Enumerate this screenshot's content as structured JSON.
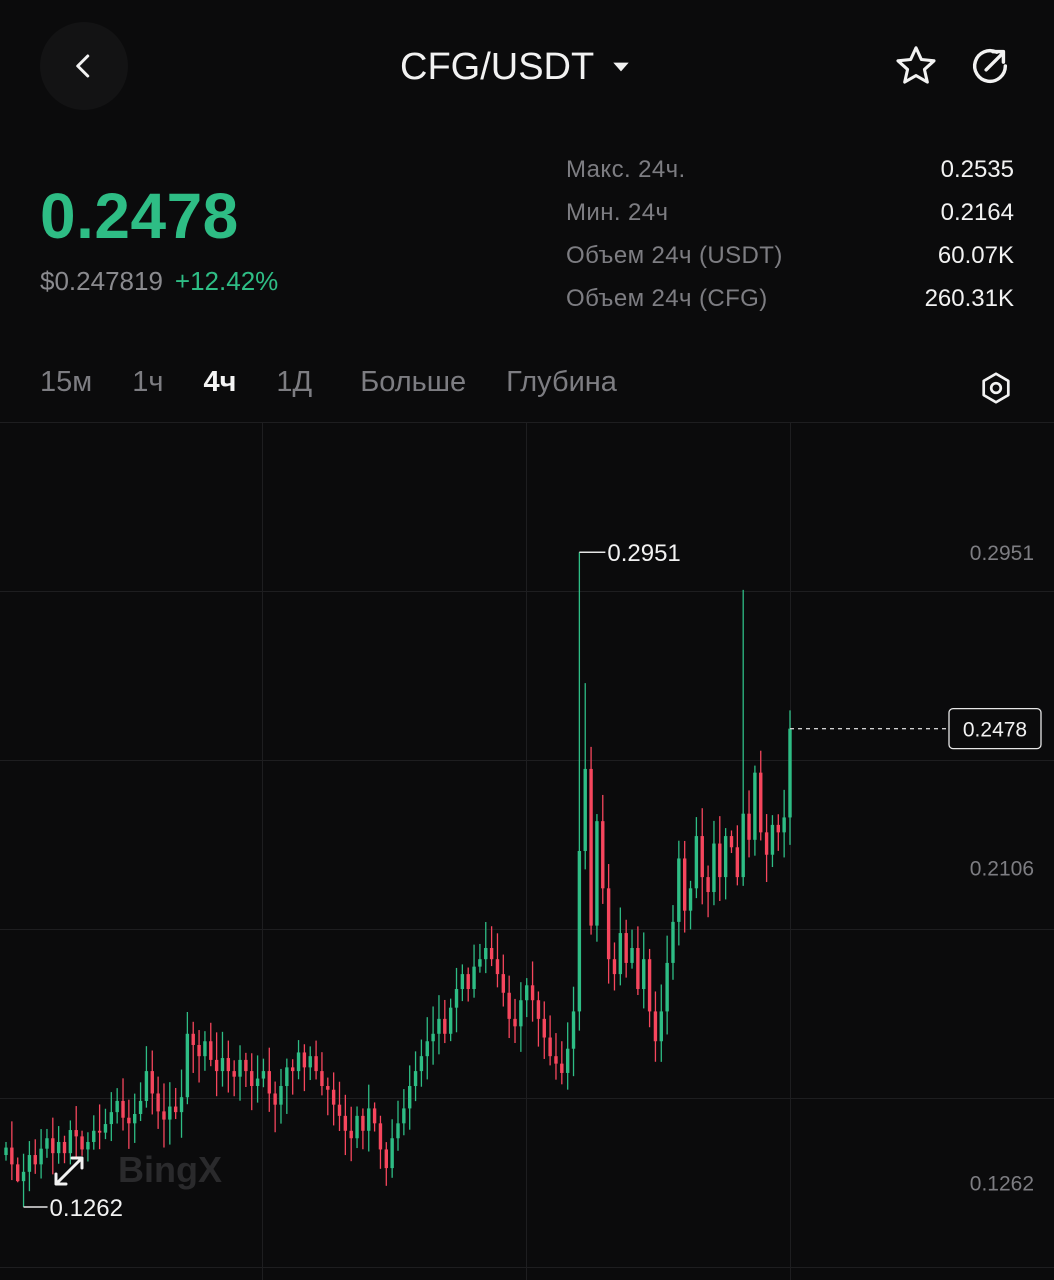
{
  "header": {
    "pair": "CFG/USDT",
    "icons": {
      "back": "chevron-left-icon",
      "dropdown": "caret-down-icon",
      "favorite": "star-icon",
      "share": "share-icon"
    }
  },
  "ticker": {
    "last_price": "0.2478",
    "usd_price": "$0.247819",
    "change": "+12.42%"
  },
  "stats": [
    {
      "label": "Макс. 24ч.",
      "value": "0.2535"
    },
    {
      "label": "Мин. 24ч",
      "value": "0.2164"
    },
    {
      "label": "Объем 24ч (USDT)",
      "value": "60.07K"
    },
    {
      "label": "Объем 24ч (CFG)",
      "value": "260.31K"
    }
  ],
  "tabs": [
    {
      "label": "15м",
      "active": false
    },
    {
      "label": "1ч",
      "active": false
    },
    {
      "label": "4ч",
      "active": true
    },
    {
      "label": "1Д",
      "active": false
    },
    {
      "label": "Больше",
      "active": false
    },
    {
      "label": "Глубина",
      "active": false
    }
  ],
  "colors": {
    "up": "#2ebd85",
    "down": "#f6465d",
    "background": "#0b0b0c",
    "grid": "#1e1e20",
    "muted": "#7d7d82"
  },
  "chart_data": {
    "type": "candlestick",
    "yticks": [
      "0.2951",
      "0.2106",
      "0.1262"
    ],
    "ylim": [
      0.1,
      0.33
    ],
    "high_label": "0.2951",
    "low_label": "0.1262",
    "current_label": "0.2478",
    "watermark": "BingX",
    "closes": [
      0.1355,
      0.131,
      0.1265,
      0.129,
      0.1335,
      0.131,
      0.1352,
      0.138,
      0.134,
      0.137,
      0.134,
      0.1402,
      0.1385,
      0.135,
      0.137,
      0.14,
      0.1395,
      0.1418,
      0.145,
      0.148,
      0.1435,
      0.142,
      0.1445,
      0.148,
      0.156,
      0.15,
      0.1452,
      0.143,
      0.1465,
      0.145,
      0.149,
      0.166,
      0.163,
      0.16,
      0.164,
      0.159,
      0.156,
      0.1595,
      0.156,
      0.1545,
      0.159,
      0.156,
      0.152,
      0.154,
      0.156,
      0.15,
      0.147,
      0.152,
      0.157,
      0.156,
      0.161,
      0.157,
      0.16,
      0.156,
      0.152,
      0.151,
      0.147,
      0.144,
      0.14,
      0.138,
      0.144,
      0.14,
      0.146,
      0.142,
      0.135,
      0.13,
      0.138,
      0.142,
      0.146,
      0.152,
      0.156,
      0.16,
      0.164,
      0.166,
      0.17,
      0.166,
      0.173,
      0.178,
      0.182,
      0.178,
      0.184,
      0.186,
      0.189,
      0.186,
      0.182,
      0.177,
      0.17,
      0.168,
      0.175,
      0.179,
      0.175,
      0.17,
      0.165,
      0.16,
      0.158,
      0.1555,
      0.162,
      0.172,
      0.215,
      0.237,
      0.195,
      0.223,
      0.205,
      0.186,
      0.182,
      0.193,
      0.185,
      0.189,
      0.178,
      0.186,
      0.172,
      0.164,
      0.172,
      0.185,
      0.196,
      0.213,
      0.199,
      0.205,
      0.219,
      0.208,
      0.204,
      0.217,
      0.208,
      0.219,
      0.216,
      0.208,
      0.225,
      0.218,
      0.236,
      0.22,
      0.214,
      0.222,
      0.22,
      0.224,
      0.2478
    ]
  }
}
